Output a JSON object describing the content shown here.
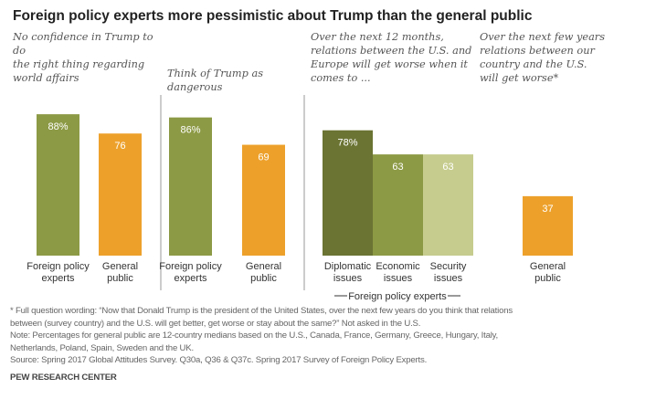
{
  "title": "Foreign policy experts more pessimistic about Trump than the general public",
  "colors": {
    "experts": "#8c9a45",
    "public": "#eda12b",
    "diplomatic": "#6b7433",
    "economic": "#8c9a45",
    "security": "#c6cc8e"
  },
  "chart_data": [
    {
      "type": "bar",
      "title": "No confidence in Trump to do\nthe right thing regarding\nworld affairs",
      "categories": [
        "Foreign policy\nexperts",
        "General\npublic"
      ],
      "values": [
        88,
        76
      ],
      "data_labels": [
        "88%",
        "76"
      ],
      "ylim": [
        0,
        100
      ]
    },
    {
      "type": "bar",
      "title": "Think of Trump as\ndangerous",
      "categories": [
        "Foreign policy\nexperts",
        "General\npublic"
      ],
      "values": [
        86,
        69
      ],
      "data_labels": [
        "86%",
        "69"
      ],
      "ylim": [
        0,
        100
      ]
    },
    {
      "type": "bar",
      "title": "Over the next 12 months,\nrelations between the U.S. and\nEurope will get worse when it\ncomes to ...",
      "categories": [
        "Diplomatic\nissues",
        "Economic\nissues",
        "Security\nissues"
      ],
      "values": [
        78,
        63,
        63
      ],
      "data_labels": [
        "78%",
        "63",
        "63"
      ],
      "group_label": "Foreign policy experts",
      "ylim": [
        0,
        100
      ]
    },
    {
      "type": "bar",
      "title": "Over the next few years\nrelations between our\ncountry and the U.S.\nwill get worse*",
      "categories": [
        "General\npublic"
      ],
      "values": [
        37
      ],
      "data_labels": [
        "37"
      ],
      "ylim": [
        0,
        100
      ]
    }
  ],
  "notes": [
    "* Full question wording: “Now that Donald Trump is the president of the United States, over the next few years do you think that relations",
    "between (survey country) and the U.S. will get better, get worse or stay about the same?” Not asked in the U.S.",
    "Note: Percentages for general public are 12-country medians based on the U.S., Canada, France, Germany, Greece, Hungary, Italy,",
    "Netherlands, Poland, Spain, Sweden and the UK.",
    "Source: Spring 2017 Global Attitudes Survey. Q30a, Q36 & Q37c. Spring 2017 Survey of Foreign Policy Experts."
  ],
  "source": "PEW RESEARCH CENTER"
}
